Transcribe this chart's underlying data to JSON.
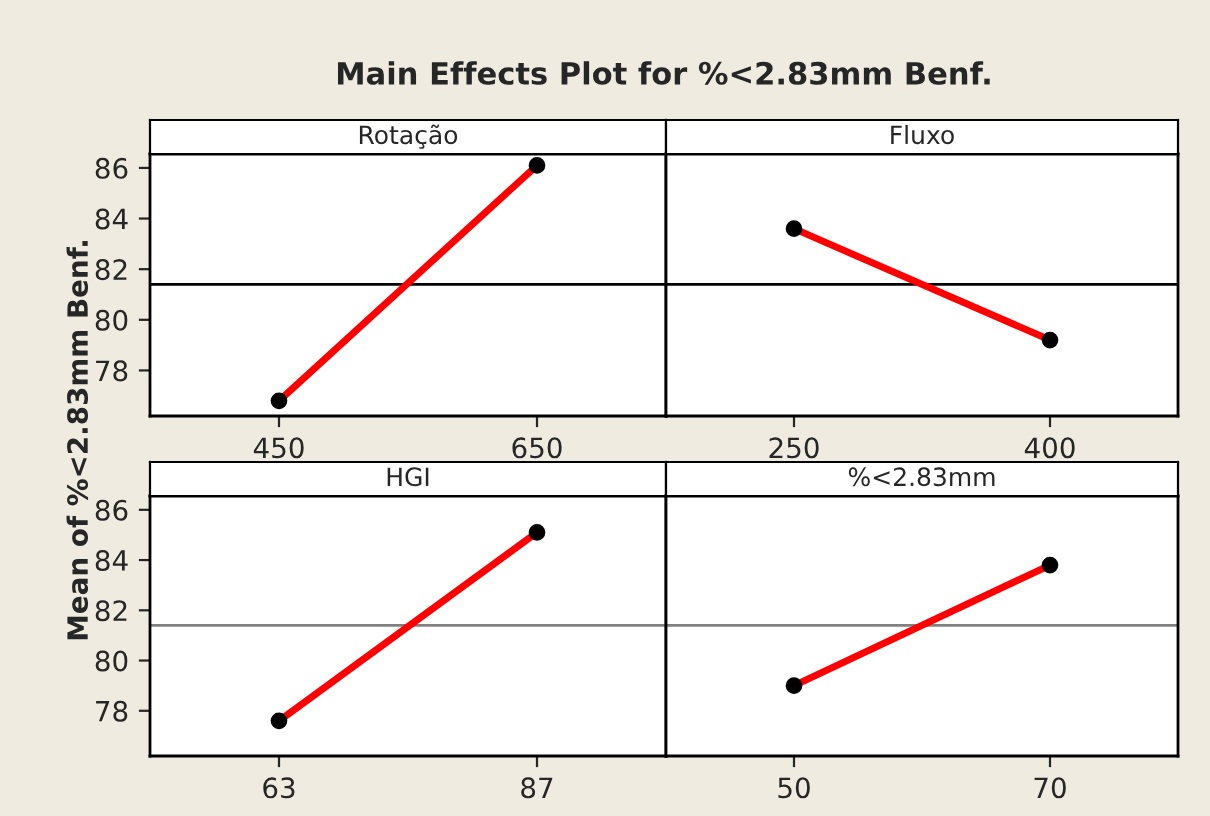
{
  "chart_data": [
    {
      "type": "line",
      "title": "Rotação",
      "ylabel": "Mean of %<2.83mm Benf.",
      "annotations": [
        "Main Effects Plot for %<2.83mm Benf."
      ],
      "categories": [
        "450",
        "650"
      ],
      "series": [
        {
          "color": "#ff0000",
          "values": [
            76.8,
            86.1
          ]
        }
      ],
      "marker": "circle",
      "ylim": [
        76.2,
        86.55
      ],
      "yticks": [
        78,
        80,
        82,
        84,
        86
      ],
      "ref_lines": [
        {
          "axis": "y",
          "value": 81.4,
          "color": "#000000"
        }
      ],
      "grid": false
    },
    {
      "type": "line",
      "title": "Fluxo",
      "categories": [
        "250",
        "400"
      ],
      "series": [
        {
          "color": "#ff0000",
          "values": [
            83.6,
            79.2
          ]
        }
      ],
      "marker": "circle",
      "ylim": [
        76.2,
        86.55
      ],
      "yticks": [
        78,
        80,
        82,
        84,
        86
      ],
      "tick_labels": "x",
      "ref_lines": [
        {
          "axis": "y",
          "value": 81.4,
          "color": "#000000"
        }
      ],
      "grid": false
    },
    {
      "type": "line",
      "title": "HGI",
      "categories": [
        "63",
        "87"
      ],
      "series": [
        {
          "color": "#ff0000",
          "values": [
            77.6,
            85.1
          ]
        }
      ],
      "marker": "circle",
      "ylim": [
        76.2,
        86.55
      ],
      "yticks": [
        78,
        80,
        82,
        84,
        86
      ],
      "ref_lines": [
        {
          "axis": "y",
          "value": 81.4,
          "color": "#808080"
        }
      ],
      "grid": false
    },
    {
      "type": "line",
      "title": "%<2.83mm",
      "categories": [
        "50",
        "70"
      ],
      "series": [
        {
          "color": "#ff0000",
          "values": [
            79.0,
            83.8
          ]
        }
      ],
      "marker": "circle",
      "ylim": [
        76.2,
        86.55
      ],
      "yticks": [
        78,
        80,
        82,
        84,
        86
      ],
      "tick_labels": "x",
      "ref_lines": [
        {
          "axis": "y",
          "value": 81.4,
          "color": "#808080"
        }
      ],
      "grid": false
    }
  ]
}
